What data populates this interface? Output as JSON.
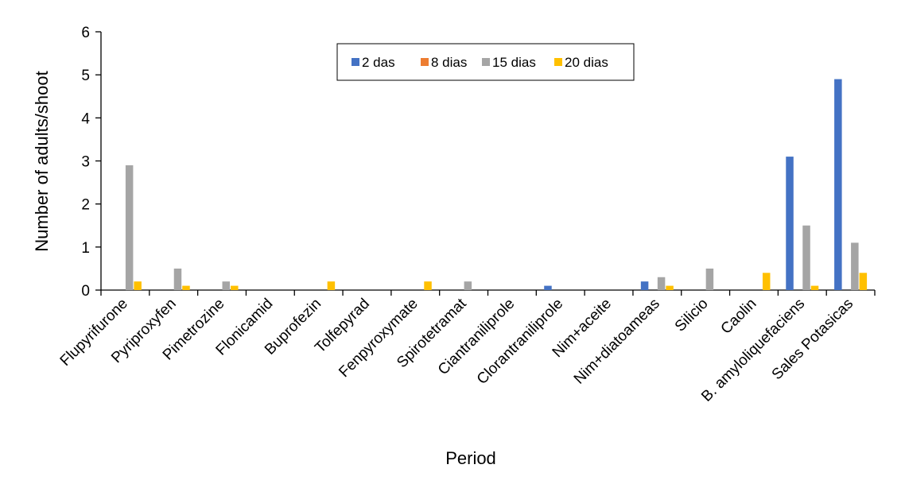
{
  "chart_data": {
    "type": "bar",
    "title": "",
    "xlabel": "Period",
    "ylabel": "Number of adults/shoot",
    "ylim": [
      0,
      6
    ],
    "yticks": [
      0,
      1,
      2,
      3,
      4,
      5,
      6
    ],
    "grid": false,
    "legend_position": "top-center",
    "categories": [
      "Flupyrifurone",
      "Pyriproxyfen",
      "Pimetrozine",
      "Flonicamid",
      "Buprofezin",
      "Tolfepyrad",
      "Fenpyroxymate",
      "Spirotetramat",
      "Ciantraniliprole",
      "Clorantraniliprole",
      "Nim+aceite",
      "Nim+diatoameas",
      "Silicio",
      "Caolin",
      "B. amyloliquefaciens",
      "Sales Potasicas"
    ],
    "series": [
      {
        "name": "2 das",
        "color": "#4472C4",
        "values": [
          0,
          0,
          0,
          0,
          0,
          0,
          0,
          0,
          0,
          0.1,
          0,
          0.2,
          0,
          0,
          3.1,
          4.9
        ]
      },
      {
        "name": "8 dias",
        "color": "#ED7D31",
        "values": [
          0,
          0,
          0,
          0,
          0,
          0,
          0,
          0,
          0,
          0,
          0,
          0,
          0,
          0,
          0,
          0
        ]
      },
      {
        "name": "15 dias",
        "color": "#A5A5A5",
        "values": [
          2.9,
          0.5,
          0.2,
          0,
          0,
          0,
          0,
          0.2,
          0,
          0,
          0,
          0.3,
          0.5,
          0,
          1.5,
          1.1
        ]
      },
      {
        "name": "20 dias",
        "color": "#FFC000",
        "values": [
          0.2,
          0.1,
          0.1,
          0,
          0.2,
          0,
          0.2,
          0,
          0,
          0,
          0,
          0.1,
          0,
          0.4,
          0.1,
          0.4
        ]
      }
    ]
  }
}
